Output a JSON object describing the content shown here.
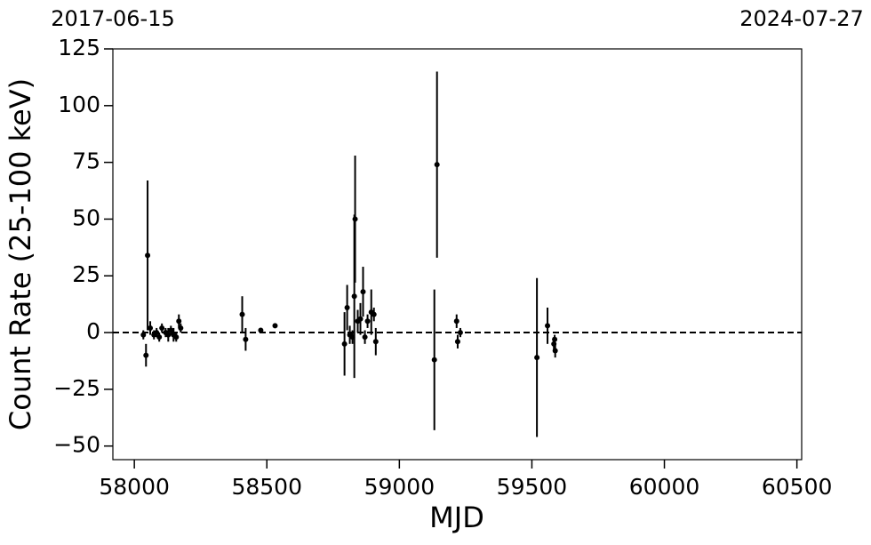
{
  "chart_data": {
    "type": "errorbar",
    "xlabel": "MJD",
    "ylabel": "Count Rate (25-100 keV)",
    "xlim": [
      57919,
      60518
    ],
    "ylim": [
      -56,
      125
    ],
    "xticks": [
      58000,
      58500,
      59000,
      59500,
      60000,
      60500
    ],
    "yticks": [
      {
        "value": -50,
        "label": "−50"
      },
      {
        "value": -25,
        "label": "−25"
      },
      0,
      25,
      50,
      75,
      100,
      125
    ],
    "top_xticks": [
      {
        "value": 57919,
        "label": "2017-06-15"
      },
      {
        "value": 60518,
        "label": "2024-07-27"
      }
    ],
    "hline": 0,
    "color": "#000000",
    "x": [
      58034,
      58044,
      58050,
      58060,
      58074,
      58084,
      58094,
      58104,
      58118,
      58128,
      58138,
      58148,
      58158,
      58168,
      58175,
      58407,
      58420,
      58477,
      58531,
      58793,
      58803,
      58813,
      58823,
      58830,
      58833,
      58843,
      58853,
      58863,
      58870,
      58880,
      58894,
      58904,
      58911,
      59132,
      59142,
      59216,
      59220,
      59230,
      59519,
      59559,
      59583,
      59586,
      59588
    ],
    "values": [
      -1,
      -10,
      34,
      2,
      -1,
      0,
      -2,
      2,
      0,
      -1,
      1,
      -1,
      -2,
      5,
      2,
      8,
      -3,
      1,
      3,
      -5,
      11,
      -1,
      -2,
      16,
      50,
      5,
      6,
      18,
      -2,
      5,
      9,
      8,
      -4,
      -12,
      74,
      5,
      -4,
      0,
      -11,
      3,
      -5,
      -3,
      -8
    ],
    "errors": [
      2,
      5,
      33,
      3,
      2,
      2,
      2,
      2,
      2,
      3,
      2,
      3,
      2,
      3,
      2,
      8,
      5,
      1,
      1,
      14,
      10,
      4,
      3,
      36,
      28,
      5,
      7,
      11,
      3,
      3,
      10,
      3,
      6,
      31,
      41,
      3,
      3,
      2,
      35,
      8,
      3,
      2,
      3
    ]
  }
}
